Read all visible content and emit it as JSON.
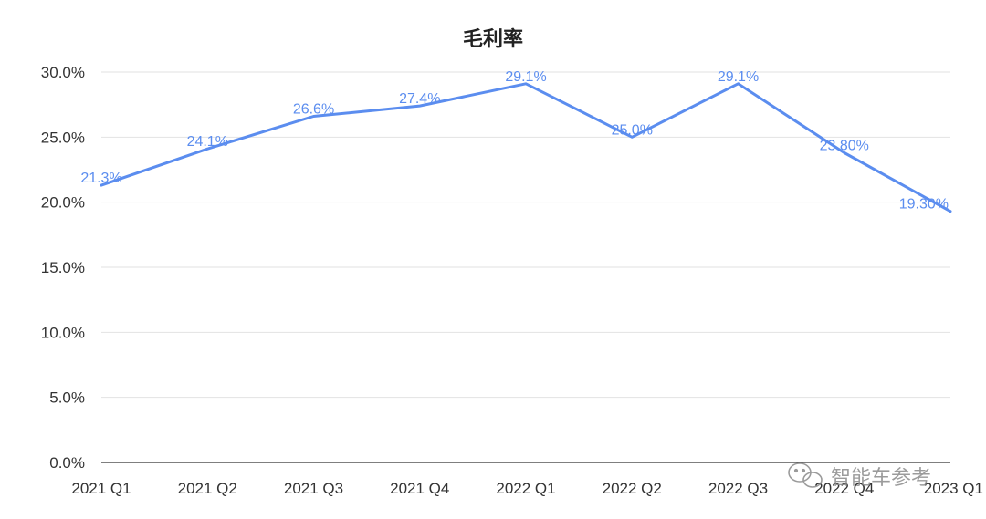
{
  "chart_data": {
    "type": "line",
    "title": "毛利率",
    "categories": [
      "2021 Q1",
      "2021 Q2",
      "2021 Q3",
      "2021 Q4",
      "2022 Q1",
      "2022 Q2",
      "2022 Q3",
      "2022 Q4",
      "2023 Q1"
    ],
    "series": [
      {
        "values": [
          21.3,
          24.1,
          26.6,
          27.4,
          29.1,
          25.0,
          29.1,
          23.8,
          19.3
        ],
        "data_labels": [
          "21.3%",
          "24.1%",
          "26.6%",
          "27.4%",
          "29.1%",
          "25.0%",
          "29.1%",
          "23.80%",
          "19.30%"
        ],
        "color": "#5b8def"
      }
    ],
    "y_ticks": [
      "0.0%",
      "5.0%",
      "10.0%",
      "15.0%",
      "20.0%",
      "25.0%",
      "30.0%"
    ],
    "ylim": [
      0,
      30
    ],
    "grid": true,
    "legend": "none",
    "label_color": "#5b8def"
  },
  "watermark": {
    "text": "智能车参考",
    "icon": "wechat-icon"
  }
}
